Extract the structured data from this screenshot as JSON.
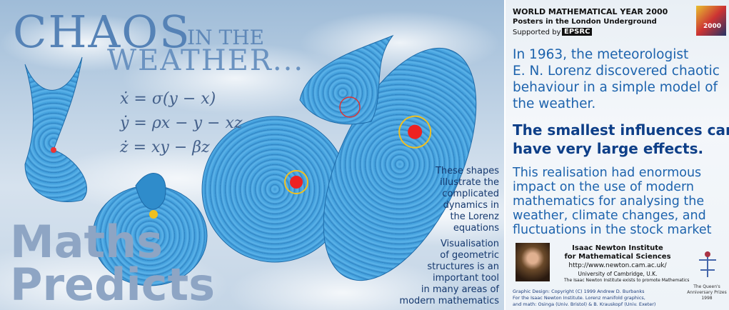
{
  "poster": {
    "title": {
      "word": "CHAOS",
      "small": "IN THE",
      "second": "WEATHER..."
    },
    "equations": [
      "ẋ = σ(y − x)",
      "ẏ = ρx − y − xz",
      "ż = xy − βz"
    ],
    "slogan": [
      "Maths",
      "Predicts"
    ],
    "caption_shapes": [
      "These shapes",
      "illustrate the",
      "complicated",
      "dynamics in",
      "the Lorenz",
      "equations"
    ],
    "caption_visual": [
      "Visualisation",
      "of geometric",
      "structures is an",
      "important tool",
      "in many areas of",
      "modern mathematics"
    ],
    "header": {
      "line1": "WORLD MATHEMATICAL YEAR 2000",
      "line2": "Posters in the London Underground",
      "supported": "Supported by",
      "sponsor": "EPSRC",
      "logo": "2000"
    },
    "paragraph1": [
      "In 1963, the meteorologist",
      "E. N. Lorenz discovered chaotic",
      "behaviour in a simple model of",
      "the weather."
    ],
    "paragraph2": [
      "The smallest influences can",
      "have very large effects."
    ],
    "paragraph3": [
      "This realisation had enormous",
      "impact on the use of modern",
      "mathematics for analysing the",
      "weather, climate changes, and",
      "fluctuations in the stock market"
    ],
    "institute": [
      "Isaac Newton Institute",
      "for Mathematical Sciences",
      "http://www.newton.cam.ac.uk/",
      "University of Cambridge, U.K.",
      "The Isaac Newton Institute exists to promote Mathematics"
    ],
    "credits": [
      "Graphic Design: Copyright (C) 1999 Andrew D. Burbanks",
      "For the Isaac Newton Institute. Lorenz manifold graphics,",
      "and math: Osinga (Univ. Bristol) & B. Krauskopf (Univ. Exeter)"
    ],
    "prize": [
      "The Queen's",
      "Anniversary Prizes",
      "1998"
    ]
  }
}
